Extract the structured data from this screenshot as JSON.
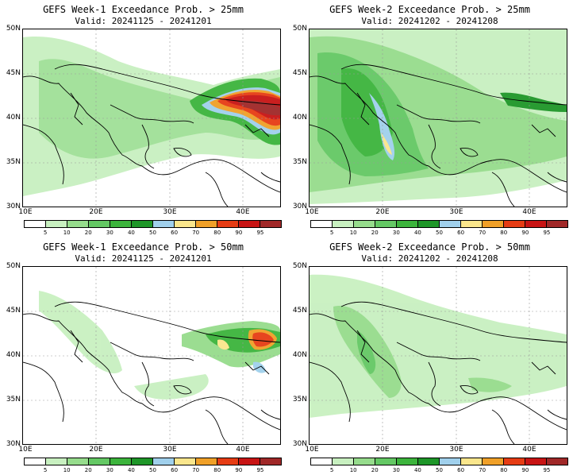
{
  "panels": [
    {
      "title": "GEFS Week-1 Exceedance Prob. > 25mm",
      "valid": "Valid: 20241125 - 20241201"
    },
    {
      "title": "GEFS Week-2 Exceedance Prob. > 25mm",
      "valid": "Valid: 20241202 - 20241208"
    },
    {
      "title": "GEFS Week-1 Exceedance Prob. > 50mm",
      "valid": "Valid: 20241125 - 20241201"
    },
    {
      "title": "GEFS Week-2 Exceedance Prob. > 50mm",
      "valid": "Valid: 20241202 - 20241208"
    }
  ],
  "lat_labels": [
    "50N",
    "45N",
    "40N",
    "35N",
    "30N"
  ],
  "lon_labels": [
    "10E",
    "20E",
    "30E",
    "40E"
  ],
  "colorbar": {
    "labels": [
      "5",
      "10",
      "20",
      "30",
      "40",
      "50",
      "60",
      "70",
      "80",
      "90",
      "95"
    ],
    "colors": [
      "#ffffff",
      "#c8f0c0",
      "#96dc8c",
      "#64c864",
      "#3cb43c",
      "#1e9628",
      "#a0d0ec",
      "#fae68c",
      "#f0a028",
      "#e63c14",
      "#c81414",
      "#a02828"
    ]
  }
}
